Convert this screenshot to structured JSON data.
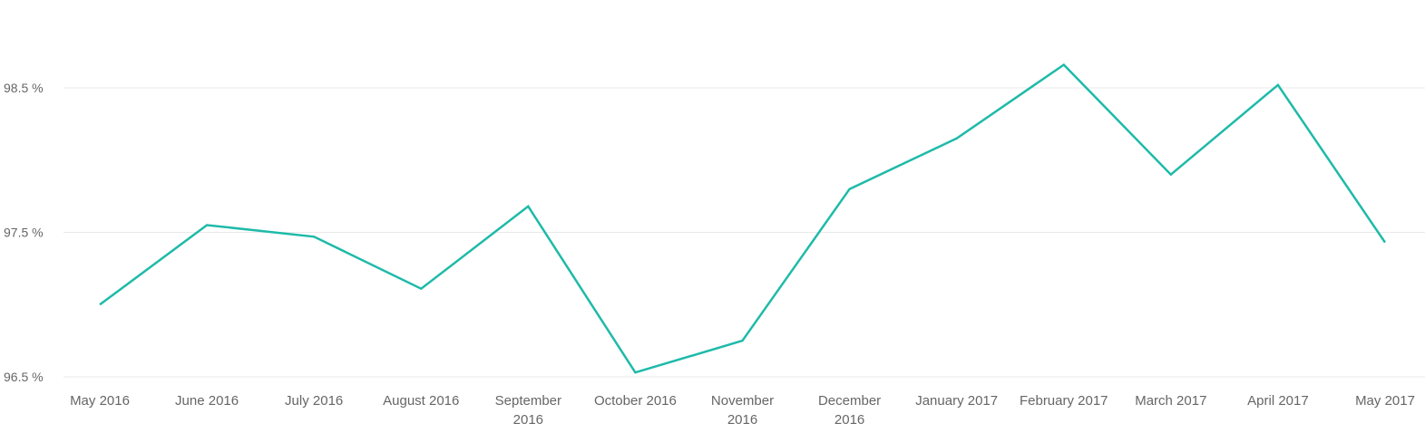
{
  "chart_data": {
    "type": "line",
    "title": "",
    "xlabel": "",
    "ylabel": "",
    "categories": [
      [
        "May 2016"
      ],
      [
        "June 2016"
      ],
      [
        "July 2016"
      ],
      [
        "August 2016"
      ],
      [
        "September",
        "2016"
      ],
      [
        "October 2016"
      ],
      [
        "November",
        "2016"
      ],
      [
        "December",
        "2016"
      ],
      [
        "January 2017"
      ],
      [
        "February 2017"
      ],
      [
        "March 2017"
      ],
      [
        "April 2017"
      ],
      [
        "May 2017"
      ]
    ],
    "series": [
      {
        "color": "#1ebaa9",
        "values": [
          97.0,
          97.55,
          97.47,
          97.11,
          97.68,
          96.53,
          96.75,
          97.8,
          98.15,
          98.66,
          97.9,
          98.52,
          97.43
        ]
      }
    ],
    "ylim": [
      96.5,
      98.5
    ],
    "yticks": [
      {
        "value": 98.5,
        "label": "98.5 %"
      },
      {
        "value": 97.5,
        "label": "97.5 %"
      },
      {
        "value": 96.5,
        "label": "96.5 %"
      }
    ],
    "grid": true,
    "legend": "none"
  }
}
